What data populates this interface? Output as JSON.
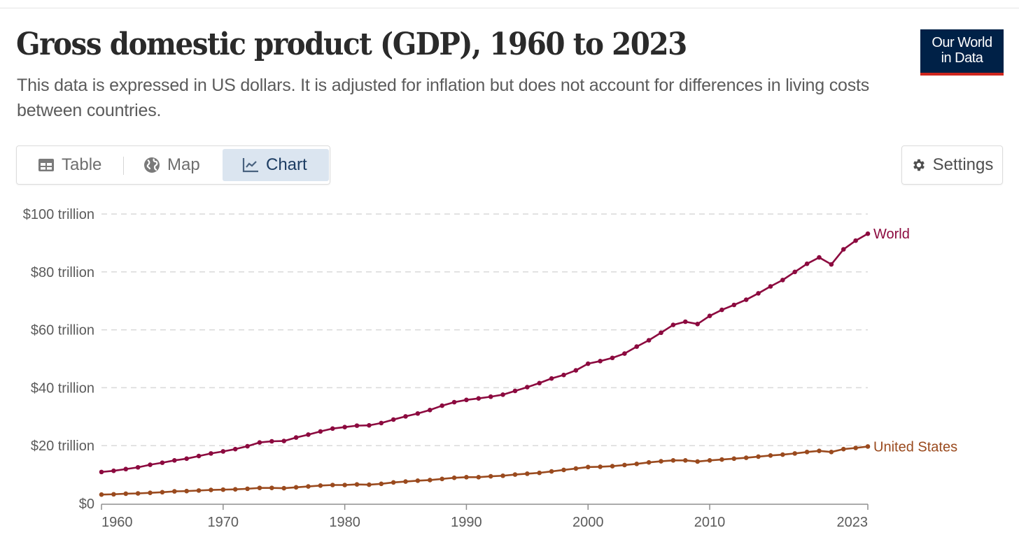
{
  "header": {
    "title": "Gross domestic product (GDP), 1960 to 2023",
    "subtitle": "This data is expressed in US dollars. It is adjusted for inflation but does not account for differences in living costs between countries.",
    "logo_line1": "Our World",
    "logo_line2": "in Data"
  },
  "tabs": [
    {
      "label": "Table",
      "icon": "table-icon",
      "active": false
    },
    {
      "label": "Map",
      "icon": "globe-icon",
      "active": false
    },
    {
      "label": "Chart",
      "icon": "line-chart-icon",
      "active": true
    }
  ],
  "settings": {
    "label": "Settings",
    "icon": "gear-icon"
  },
  "colors": {
    "world": "#8c0a3f",
    "united_states": "#9a4a1e",
    "active_tab_bg": "#dbe5f0",
    "logo_bg": "#002147",
    "logo_accent": "#ce261e"
  },
  "chart_data": {
    "type": "line",
    "title": "Gross domestic product (GDP), 1960 to 2023",
    "xlabel": "",
    "ylabel": "",
    "xlim": [
      1960,
      2023
    ],
    "ylim": [
      0,
      100
    ],
    "grid": "horizontal-dashed",
    "legend": "inline-right",
    "yticks": [
      {
        "value": 0,
        "label": "$0"
      },
      {
        "value": 20,
        "label": "$20 trillion"
      },
      {
        "value": 40,
        "label": "$40 trillion"
      },
      {
        "value": 60,
        "label": "$60 trillion"
      },
      {
        "value": 80,
        "label": "$80 trillion"
      },
      {
        "value": 100,
        "label": "$100 trillion"
      }
    ],
    "xticks": [
      {
        "value": 1960,
        "label": "1960"
      },
      {
        "value": 1970,
        "label": "1970"
      },
      {
        "value": 1980,
        "label": "1980"
      },
      {
        "value": 1990,
        "label": "1990"
      },
      {
        "value": 2000,
        "label": "2000"
      },
      {
        "value": 2010,
        "label": "2010"
      },
      {
        "value": 2023,
        "label": "2023"
      }
    ],
    "x": [
      1960,
      1961,
      1962,
      1963,
      1964,
      1965,
      1966,
      1967,
      1968,
      1969,
      1970,
      1971,
      1972,
      1973,
      1974,
      1975,
      1976,
      1977,
      1978,
      1979,
      1980,
      1981,
      1982,
      1983,
      1984,
      1985,
      1986,
      1987,
      1988,
      1989,
      1990,
      1991,
      1992,
      1993,
      1994,
      1995,
      1996,
      1997,
      1998,
      1999,
      2000,
      2001,
      2002,
      2003,
      2004,
      2005,
      2006,
      2007,
      2008,
      2009,
      2010,
      2011,
      2012,
      2013,
      2014,
      2015,
      2016,
      2017,
      2018,
      2019,
      2020,
      2021,
      2022,
      2023
    ],
    "series": [
      {
        "name": "World",
        "unit": "trillion US$",
        "values": [
          10.9,
          11.3,
          11.9,
          12.5,
          13.4,
          14.1,
          14.9,
          15.5,
          16.4,
          17.3,
          18.0,
          18.8,
          19.8,
          21.1,
          21.5,
          21.6,
          22.8,
          23.8,
          24.9,
          25.9,
          26.4,
          26.9,
          27.0,
          27.8,
          29.0,
          30.1,
          31.1,
          32.3,
          33.8,
          35.0,
          35.8,
          36.3,
          36.9,
          37.6,
          38.9,
          40.2,
          41.6,
          43.2,
          44.4,
          46.0,
          48.3,
          49.2,
          50.3,
          51.8,
          54.2,
          56.4,
          59.0,
          61.7,
          62.8,
          62.0,
          64.8,
          66.9,
          68.6,
          70.4,
          72.6,
          75.0,
          77.2,
          80.0,
          82.8,
          85.0,
          82.6,
          87.8,
          90.8,
          93.2
        ]
      },
      {
        "name": "United States",
        "unit": "trillion US$",
        "values": [
          3.1,
          3.2,
          3.4,
          3.5,
          3.7,
          3.9,
          4.2,
          4.3,
          4.5,
          4.7,
          4.8,
          4.9,
          5.1,
          5.4,
          5.4,
          5.3,
          5.6,
          5.9,
          6.2,
          6.4,
          6.4,
          6.6,
          6.5,
          6.8,
          7.3,
          7.6,
          7.9,
          8.1,
          8.5,
          8.9,
          9.1,
          9.1,
          9.4,
          9.6,
          10.0,
          10.3,
          10.6,
          11.1,
          11.6,
          12.1,
          12.6,
          12.7,
          12.9,
          13.3,
          13.7,
          14.2,
          14.6,
          14.9,
          14.9,
          14.5,
          14.9,
          15.2,
          15.5,
          15.8,
          16.2,
          16.6,
          16.9,
          17.3,
          17.8,
          18.2,
          17.8,
          18.8,
          19.2,
          19.7
        ]
      }
    ]
  }
}
